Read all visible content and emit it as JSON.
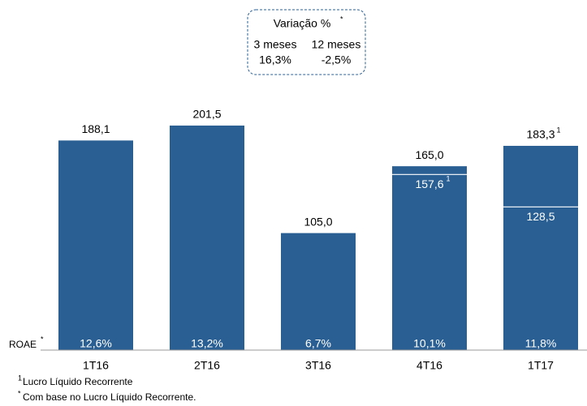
{
  "chart_data": {
    "type": "bar",
    "categories": [
      "1T16",
      "2T16",
      "3T16",
      "4T16",
      "1T17"
    ],
    "values": [
      188.1,
      201.5,
      105.0,
      165.0,
      183.3
    ],
    "value_labels": [
      "188,1",
      "201,5",
      "105,0",
      "165,0",
      "183,3"
    ],
    "value_label_notes": [
      null,
      null,
      null,
      null,
      "1"
    ],
    "inner_values": [
      null,
      null,
      null,
      157.6,
      128.5
    ],
    "inner_value_labels": [
      null,
      null,
      null,
      "157,6",
      "128,5"
    ],
    "inner_value_notes": [
      null,
      null,
      null,
      "1",
      null
    ],
    "color": "#2a5f93",
    "ylim": [
      0,
      220
    ],
    "roae_label": "ROAE",
    "roae_note": "*",
    "roae_values": [
      12.6,
      13.2,
      6.7,
      10.1,
      11.8
    ],
    "roae_value_labels": [
      "12,6%",
      "13,2%",
      "6,7%",
      "10,1%",
      "11,8%"
    ],
    "variation": {
      "title": "Variação %",
      "title_note": "*",
      "headers": [
        "3 meses",
        "12 meses"
      ],
      "values": [
        16.3,
        -2.5
      ],
      "value_labels": [
        "16,3%",
        "-2,5%"
      ]
    },
    "footnotes": [
      {
        "mark": "1",
        "text": "Lucro Líquido Recorrente"
      },
      {
        "mark": "*",
        "text": "Com base no Lucro Líquido Recorrente."
      }
    ]
  }
}
